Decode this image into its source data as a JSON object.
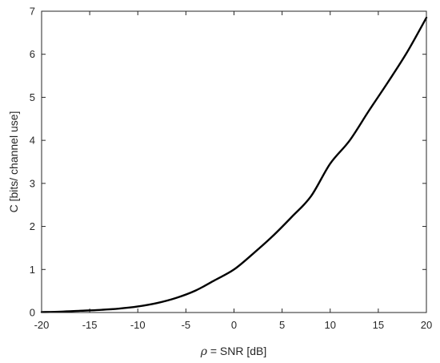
{
  "chart_data": {
    "type": "line",
    "title": "",
    "xlabel_symbol": "ρ",
    "xlabel_rest": " = SNR  [dB]",
    "ylabel": "C  [bits/ channel use]",
    "xlim": [
      -20,
      20
    ],
    "ylim": [
      0,
      7
    ],
    "xticks": [
      -20,
      -15,
      -10,
      -5,
      0,
      5,
      10,
      15,
      20
    ],
    "yticks": [
      0,
      1,
      2,
      3,
      4,
      5,
      6,
      7
    ],
    "grid": false,
    "legend": "none",
    "series": [
      {
        "color": "#000000",
        "x": [
          -20,
          -18,
          -16,
          -14,
          -12,
          -10,
          -8,
          -6,
          -4,
          -2,
          0,
          2,
          4,
          6,
          8,
          10,
          12,
          14,
          16,
          18,
          20
        ],
        "y": [
          0.01,
          0.02,
          0.04,
          0.06,
          0.09,
          0.14,
          0.22,
          0.34,
          0.51,
          0.75,
          1.0,
          1.37,
          1.77,
          2.22,
          2.7,
          3.46,
          3.99,
          4.68,
          5.35,
          6.05,
          6.85
        ]
      }
    ]
  }
}
